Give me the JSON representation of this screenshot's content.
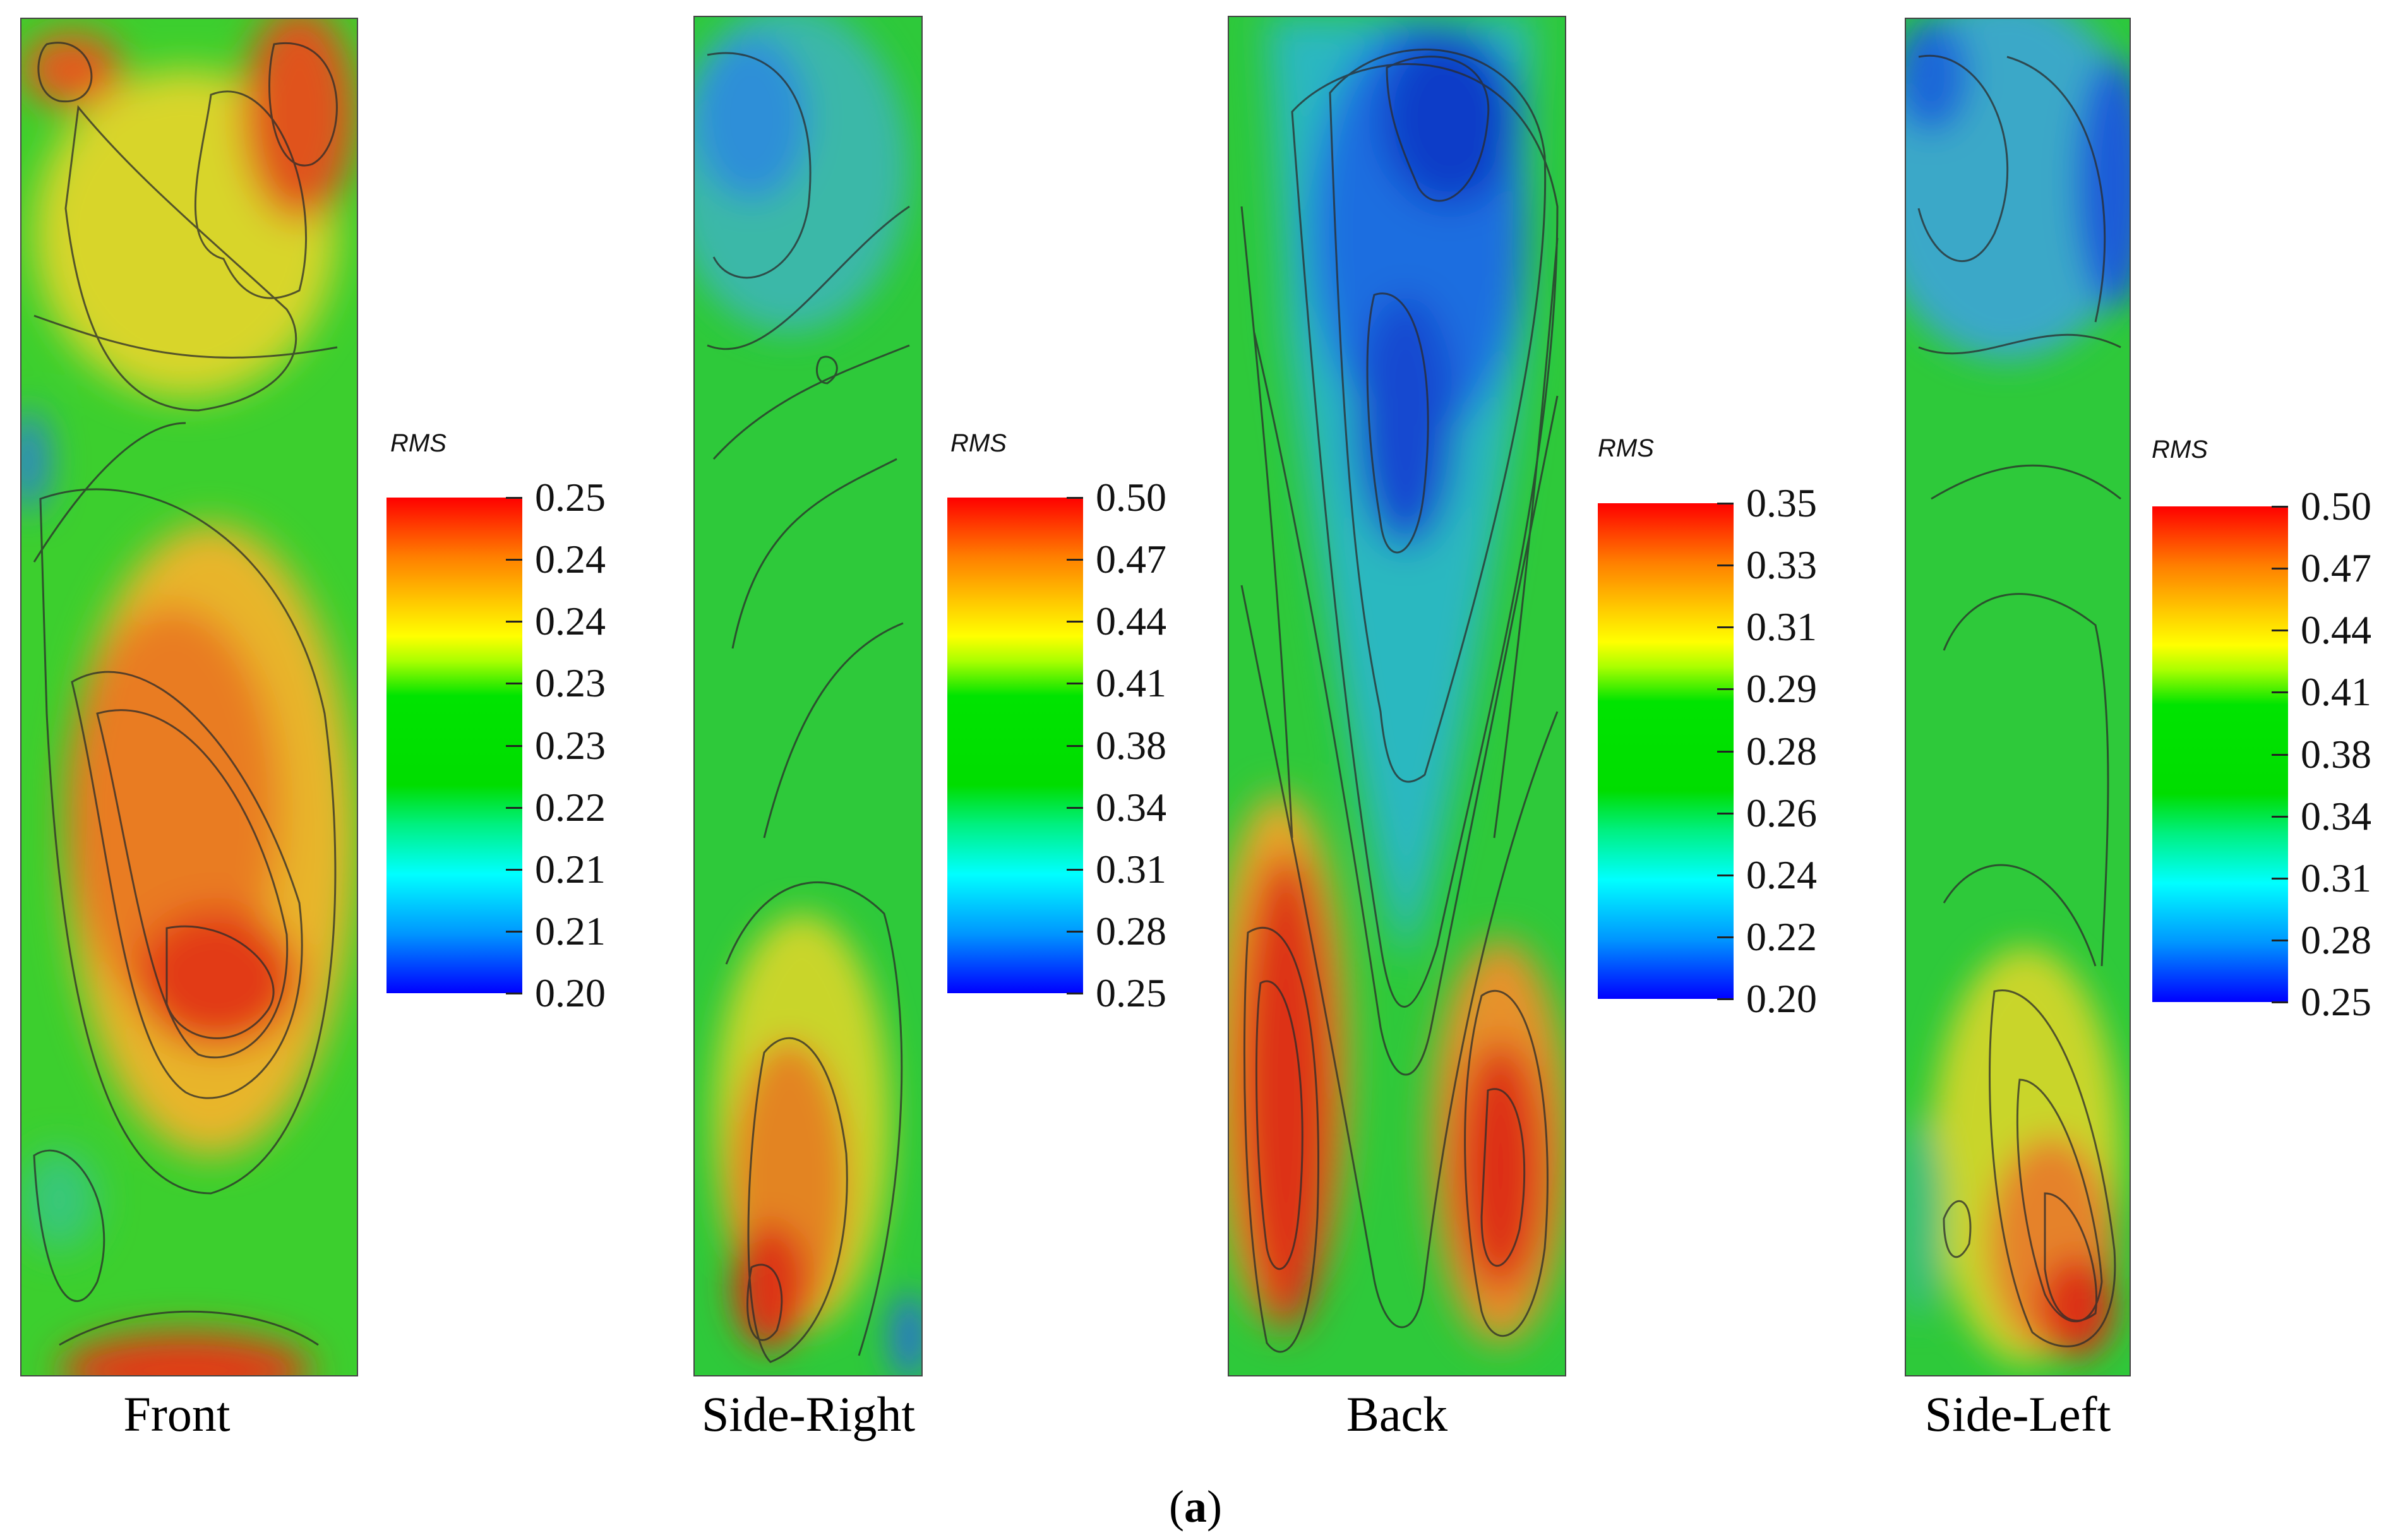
{
  "panels": [
    {
      "label": "Front",
      "legend_title": "RMS",
      "ticks": [
        "0.25",
        "0.24",
        "0.24",
        "0.23",
        "0.23",
        "0.22",
        "0.21",
        "0.21",
        "0.20"
      ]
    },
    {
      "label": "Side-Right",
      "legend_title": "RMS",
      "ticks": [
        "0.50",
        "0.47",
        "0.44",
        "0.41",
        "0.38",
        "0.34",
        "0.31",
        "0.28",
        "0.25"
      ]
    },
    {
      "label": "Back",
      "legend_title": "RMS",
      "ticks": [
        "0.35",
        "0.33",
        "0.31",
        "0.29",
        "0.28",
        "0.26",
        "0.24",
        "0.22",
        "0.20"
      ]
    },
    {
      "label": "Side-Left",
      "legend_title": "RMS",
      "ticks": [
        "0.50",
        "0.47",
        "0.44",
        "0.41",
        "0.38",
        "0.34",
        "0.31",
        "0.28",
        "0.25"
      ]
    }
  ],
  "caption": {
    "open": "(",
    "letter": "a",
    "close": ")"
  },
  "colormap": [
    "#ff0000",
    "#ff7f00",
    "#ffff00",
    "#00dd00",
    "#00ffff",
    "#0000ff"
  ]
}
